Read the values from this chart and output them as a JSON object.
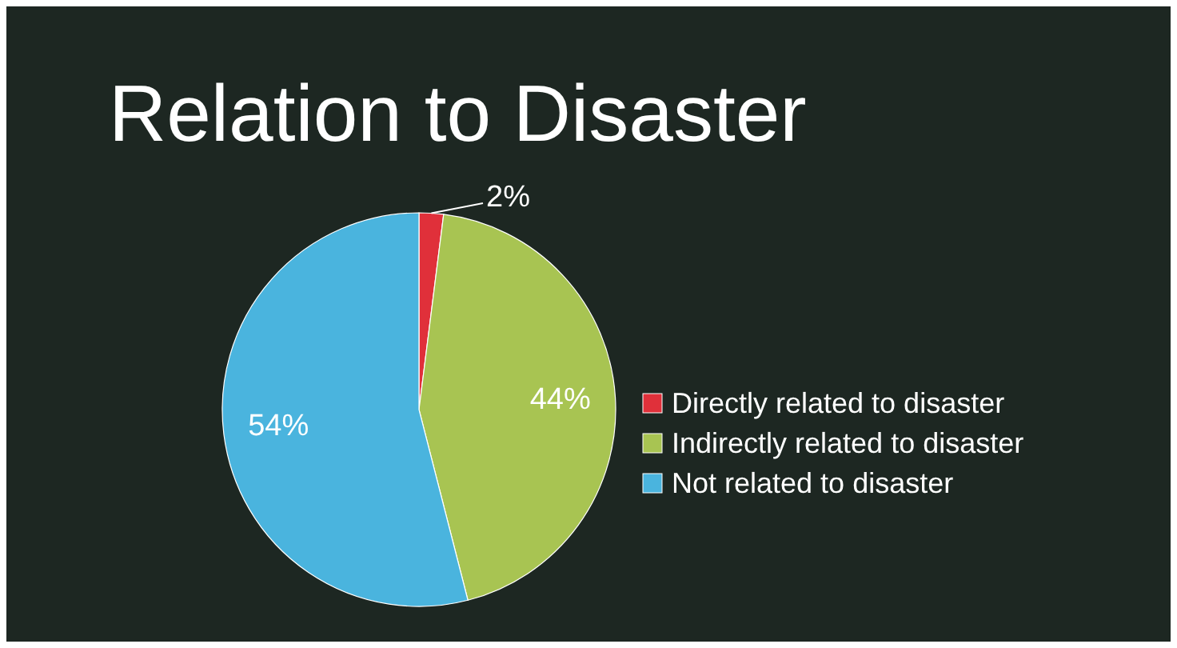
{
  "chart_data": {
    "type": "pie",
    "title": "Relation to Disaster",
    "categories": [
      "Directly related to disaster",
      "Indirectly related to disaster",
      "Not related to disaster"
    ],
    "values": [
      2,
      44,
      54
    ],
    "colors": [
      "#e0303a",
      "#a8c452",
      "#4ab4de"
    ],
    "value_labels": [
      "2%",
      "44%",
      "54%"
    ],
    "legend": "right"
  }
}
